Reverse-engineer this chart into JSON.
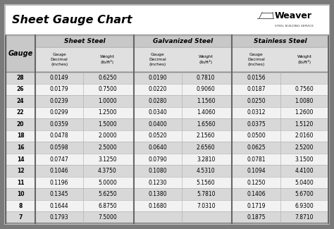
{
  "title": "Sheet Gauge Chart",
  "bg_outer": "#7a7a7a",
  "bg_white": "#ffffff",
  "col_sections": [
    "Sheet Steel",
    "Galvanized Steel",
    "Stainless Steel"
  ],
  "gauges": [
    28,
    26,
    24,
    22,
    20,
    18,
    16,
    14,
    12,
    11,
    10,
    8,
    7
  ],
  "sheet_steel": [
    [
      "0.0149",
      "0.6250"
    ],
    [
      "0.0179",
      "0.7500"
    ],
    [
      "0.0239",
      "1.0000"
    ],
    [
      "0.0299",
      "1.2500"
    ],
    [
      "0.0359",
      "1.5000"
    ],
    [
      "0.0478",
      "2.0000"
    ],
    [
      "0.0598",
      "2.5000"
    ],
    [
      "0.0747",
      "3.1250"
    ],
    [
      "0.1046",
      "4.3750"
    ],
    [
      "0.1196",
      "5.0000"
    ],
    [
      "0.1345",
      "5.6250"
    ],
    [
      "0.1644",
      "6.8750"
    ],
    [
      "0.1793",
      "7.5000"
    ]
  ],
  "galvanized_steel": [
    [
      "0.0190",
      "0.7810"
    ],
    [
      "0.0220",
      "0.9060"
    ],
    [
      "0.0280",
      "1.1560"
    ],
    [
      "0.0340",
      "1.4060"
    ],
    [
      "0.0400",
      "1.6560"
    ],
    [
      "0.0520",
      "2.1560"
    ],
    [
      "0.0640",
      "2.6560"
    ],
    [
      "0.0790",
      "3.2810"
    ],
    [
      "0.1080",
      "4.5310"
    ],
    [
      "0.1230",
      "5.1560"
    ],
    [
      "0.1380",
      "5.7810"
    ],
    [
      "0.1680",
      "7.0310"
    ],
    [
      "",
      ""
    ]
  ],
  "stainless_steel": [
    [
      "0.0156",
      ""
    ],
    [
      "0.0187",
      "0.7560"
    ],
    [
      "0.0250",
      "1.0080"
    ],
    [
      "0.0312",
      "1.2600"
    ],
    [
      "0.0375",
      "1.5120"
    ],
    [
      "0.0500",
      "2.0160"
    ],
    [
      "0.0625",
      "2.5200"
    ],
    [
      "0.0781",
      "3.1500"
    ],
    [
      "0.1094",
      "4.4100"
    ],
    [
      "0.1250",
      "5.0400"
    ],
    [
      "0.1406",
      "5.6700"
    ],
    [
      "0.1719",
      "6.9300"
    ],
    [
      "0.1875",
      "7.8710"
    ]
  ],
  "row_colors": [
    "#d8d8d8",
    "#f2f2f2"
  ],
  "header_section_bg": "#c8c8c8",
  "header_sub_bg": "#e0e0e0",
  "gauge_header_bg": "#c8c8c8",
  "border_color": "#999999",
  "thick_border_color": "#555555",
  "separator_color": "#888888"
}
